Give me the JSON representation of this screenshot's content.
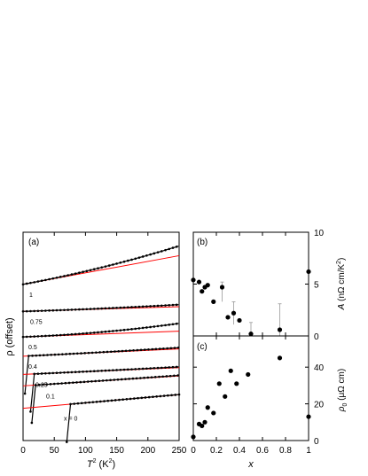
{
  "chart_data": [
    {
      "panel_label": "(a)",
      "type": "line",
      "ylabel": "ρ (offset)",
      "xlabel_prefix": "T",
      "xlabel_sup": "2",
      "xlabel_suffix": " (K",
      "xlabel_unit_sup": "2",
      "xlabel_end": ")",
      "xlim": [
        0,
        250
      ],
      "xticks": [
        "0",
        "50",
        "100",
        "150",
        "200",
        "250"
      ],
      "fit_color": "#ff0000",
      "data_color": "#000000",
      "series": [
        {
          "name": "1",
          "y0": 300,
          "y250": 372,
          "fit_end": 355,
          "curve_start": 0,
          "curvature": 0.55
        },
        {
          "name": "0.75",
          "y0": 248,
          "y250": 262,
          "fit_end": 257,
          "curve_start": 0,
          "curvature": 0.4
        },
        {
          "name": "0.5",
          "y0": 199,
          "y250": 225,
          "fit_end": 210,
          "curve_start": 0,
          "curvature": 0.5
        },
        {
          "name": "0.4",
          "y0": 162,
          "y250": 182,
          "fit_end": 176,
          "curve_start": 3,
          "curvature": 0.2
        },
        {
          "name": "0.25",
          "y0": 127,
          "y250": 144,
          "fit_end": 140,
          "curve_start": 12,
          "curvature": 0.2
        },
        {
          "name": "0.1",
          "y0": 105,
          "y250": 128,
          "fit_end": 124,
          "curve_start": 14,
          "curvature": 0.15
        },
        {
          "name": "x = 0",
          "y0": 62,
          "y250": 90,
          "fit_end": 88,
          "curve_start": 70,
          "curvature": 0.1
        }
      ]
    },
    {
      "panel_label": "(b)",
      "type": "scatter",
      "ylabel_prefix": "A",
      "ylabel_unit": " (nΩ cm/K",
      "ylabel_sup": "2",
      "ylabel_end": ")",
      "xlim": [
        0,
        1
      ],
      "ylim": [
        0,
        10
      ],
      "yticks": [
        "0",
        "5",
        "10"
      ],
      "points": [
        {
          "x": 0.0,
          "y": 5.4
        },
        {
          "x": 0.05,
          "y": 5.2
        },
        {
          "x": 0.075,
          "y": 4.3
        },
        {
          "x": 0.1,
          "y": 4.7
        },
        {
          "x": 0.125,
          "y": 4.9
        },
        {
          "x": 0.175,
          "y": 3.3
        },
        {
          "x": 0.25,
          "y": 4.7
        },
        {
          "x": 0.3,
          "y": 1.8
        },
        {
          "x": 0.35,
          "y": 2.2
        },
        {
          "x": 0.4,
          "y": 1.5
        },
        {
          "x": 0.5,
          "y": 0.2
        },
        {
          "x": 0.75,
          "y": 0.6
        },
        {
          "x": 1.0,
          "y": 6.2
        }
      ],
      "errors": [
        {
          "x": 0.25,
          "lo": 3.3,
          "hi": 5.2
        },
        {
          "x": 0.35,
          "lo": 1.1,
          "hi": 3.3
        },
        {
          "x": 0.5,
          "lo": 0.0,
          "hi": 1.3
        },
        {
          "x": 0.75,
          "lo": 0.0,
          "hi": 3.1
        }
      ]
    },
    {
      "panel_label": "(c)",
      "type": "scatter",
      "ylabel_prefix": "ρ",
      "ylabel_sub": "0",
      "ylabel_unit": " (μΩ cm)",
      "xlabel": "x",
      "xlim": [
        0,
        1
      ],
      "ylim": [
        0,
        57
      ],
      "xticks": [
        "0",
        "0.2",
        "0.4",
        "0.6",
        "0.8",
        "1"
      ],
      "yticks": [
        "0",
        "20",
        "40"
      ],
      "points": [
        {
          "x": 0.0,
          "y": 2
        },
        {
          "x": 0.05,
          "y": 9
        },
        {
          "x": 0.075,
          "y": 8
        },
        {
          "x": 0.1,
          "y": 10
        },
        {
          "x": 0.125,
          "y": 18
        },
        {
          "x": 0.175,
          "y": 15
        },
        {
          "x": 0.225,
          "y": 31
        },
        {
          "x": 0.275,
          "y": 24
        },
        {
          "x": 0.325,
          "y": 38
        },
        {
          "x": 0.375,
          "y": 31
        },
        {
          "x": 0.475,
          "y": 36
        },
        {
          "x": 0.75,
          "y": 45
        },
        {
          "x": 1.0,
          "y": 13
        }
      ]
    }
  ]
}
